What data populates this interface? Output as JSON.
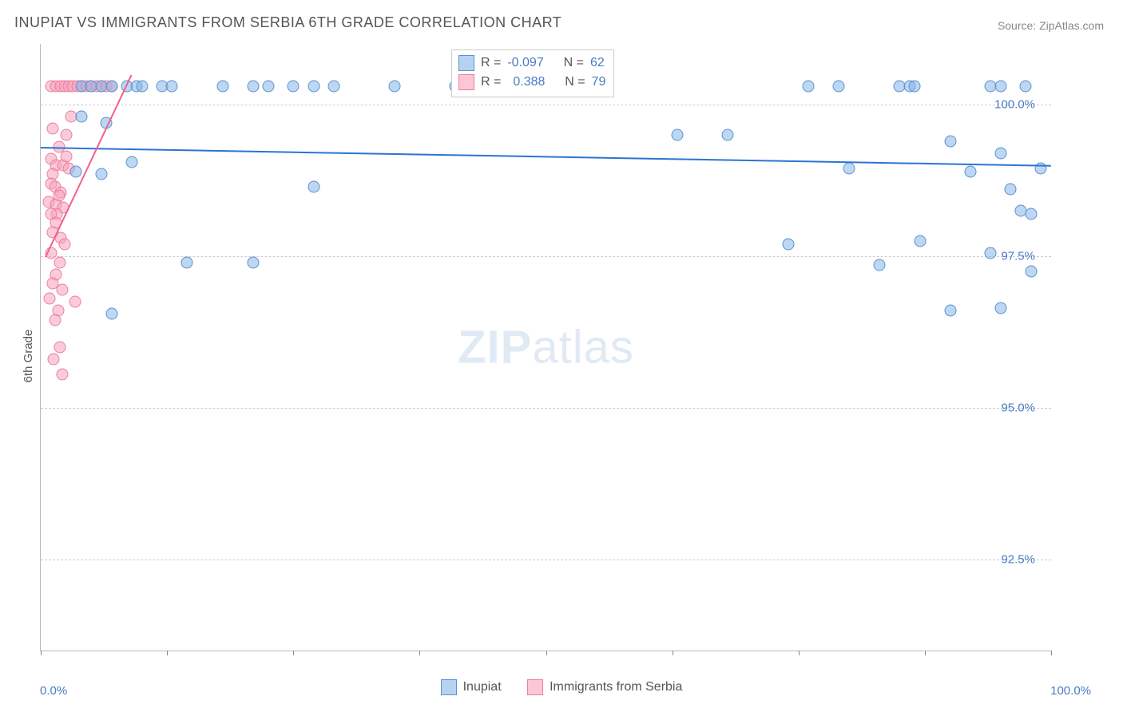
{
  "title": "INUPIAT VS IMMIGRANTS FROM SERBIA 6TH GRADE CORRELATION CHART",
  "source": "Source: ZipAtlas.com",
  "ylabel": "6th Grade",
  "watermark_zip": "ZIP",
  "watermark_atlas": "atlas",
  "chart": {
    "type": "scatter",
    "xlim": [
      0,
      100
    ],
    "ylim": [
      91,
      101
    ],
    "ytick_values": [
      92.5,
      95.0,
      97.5,
      100.0
    ],
    "ytick_labels": [
      "92.5%",
      "95.0%",
      "97.5%",
      "100.0%"
    ],
    "xtick_values": [
      0,
      12.5,
      25,
      37.5,
      50,
      62.5,
      75,
      87.5,
      100
    ],
    "xaxis_labels": {
      "left": "0.0%",
      "right": "100.0%"
    },
    "grid_color": "#cccccc",
    "background_color": "#ffffff",
    "series": {
      "blue": {
        "label": "Inupiat",
        "color_fill": "rgba(135,180,230,0.55)",
        "color_stroke": "#5a93d0",
        "trendline_color": "#2b74d4",
        "trendline": {
          "x1": 0,
          "y1": 99.3,
          "x2": 100,
          "y2": 99.0
        },
        "R": "-0.097",
        "N": "62",
        "points": [
          [
            4,
            100.3
          ],
          [
            5,
            100.3
          ],
          [
            6,
            100.3
          ],
          [
            7,
            100.3
          ],
          [
            8.5,
            100.3
          ],
          [
            9.5,
            100.3
          ],
          [
            10,
            100.3
          ],
          [
            12,
            100.3
          ],
          [
            13,
            100.3
          ],
          [
            18,
            100.3
          ],
          [
            21,
            100.3
          ],
          [
            22.5,
            100.3
          ],
          [
            25,
            100.3
          ],
          [
            27,
            100.3
          ],
          [
            29,
            100.3
          ],
          [
            35,
            100.3
          ],
          [
            41,
            100.3
          ],
          [
            76,
            100.3
          ],
          [
            79,
            100.3
          ],
          [
            85,
            100.3
          ],
          [
            86,
            100.3
          ],
          [
            86.5,
            100.3
          ],
          [
            94,
            100.3
          ],
          [
            95,
            100.3
          ],
          [
            97.5,
            100.3
          ],
          [
            4,
            99.8
          ],
          [
            6.5,
            99.7
          ],
          [
            63,
            99.5
          ],
          [
            68,
            99.5
          ],
          [
            90,
            99.4
          ],
          [
            95,
            99.2
          ],
          [
            9,
            99.05
          ],
          [
            3.5,
            98.9
          ],
          [
            6,
            98.85
          ],
          [
            80,
            98.95
          ],
          [
            92,
            98.9
          ],
          [
            99,
            98.95
          ],
          [
            27,
            98.65
          ],
          [
            96,
            98.6
          ],
          [
            97,
            98.25
          ],
          [
            98,
            98.2
          ],
          [
            74,
            97.7
          ],
          [
            87,
            97.75
          ],
          [
            94,
            97.55
          ],
          [
            14.5,
            97.4
          ],
          [
            21,
            97.4
          ],
          [
            83,
            97.35
          ],
          [
            98,
            97.25
          ],
          [
            7,
            96.55
          ],
          [
            90,
            96.6
          ],
          [
            95,
            96.65
          ]
        ]
      },
      "pink": {
        "label": "Immigrants from Serbia",
        "color_fill": "rgba(250,160,185,0.55)",
        "color_stroke": "#e87fa0",
        "trendline_color": "#f25f88",
        "trendline": {
          "x1": 0.5,
          "y1": 97.5,
          "x2": 9,
          "y2": 100.5
        },
        "R": "0.388",
        "N": "79",
        "points": [
          [
            1,
            100.3
          ],
          [
            1.5,
            100.3
          ],
          [
            2,
            100.3
          ],
          [
            2.4,
            100.3
          ],
          [
            2.8,
            100.3
          ],
          [
            3.2,
            100.3
          ],
          [
            3.6,
            100.3
          ],
          [
            4,
            100.3
          ],
          [
            4.5,
            100.3
          ],
          [
            5,
            100.3
          ],
          [
            5.5,
            100.3
          ],
          [
            6,
            100.3
          ],
          [
            6.5,
            100.3
          ],
          [
            7,
            100.3
          ],
          [
            3,
            99.8
          ],
          [
            1.2,
            99.6
          ],
          [
            2.5,
            99.5
          ],
          [
            1.8,
            99.3
          ],
          [
            1,
            99.1
          ],
          [
            1.5,
            99.0
          ],
          [
            2.2,
            99.0
          ],
          [
            2.8,
            98.95
          ],
          [
            2.5,
            99.15
          ],
          [
            1.2,
            98.85
          ],
          [
            1,
            98.7
          ],
          [
            1.4,
            98.65
          ],
          [
            2,
            98.55
          ],
          [
            0.8,
            98.4
          ],
          [
            1.5,
            98.35
          ],
          [
            2.2,
            98.3
          ],
          [
            1.8,
            98.5
          ],
          [
            1.6,
            98.2
          ],
          [
            1,
            98.2
          ],
          [
            1.5,
            98.05
          ],
          [
            1.2,
            97.9
          ],
          [
            2,
            97.8
          ],
          [
            2.4,
            97.7
          ],
          [
            1,
            97.55
          ],
          [
            1.9,
            97.4
          ],
          [
            1.5,
            97.2
          ],
          [
            1.2,
            97.05
          ],
          [
            2.1,
            96.95
          ],
          [
            0.9,
            96.8
          ],
          [
            3.4,
            96.75
          ],
          [
            1.7,
            96.6
          ],
          [
            1.4,
            96.45
          ],
          [
            1.9,
            96.0
          ],
          [
            1.3,
            95.8
          ],
          [
            2.1,
            95.55
          ]
        ]
      }
    }
  },
  "legend_inset": {
    "prefix_R": "R =",
    "prefix_N": "N ="
  },
  "bottom_legend": {
    "items": [
      "Inupiat",
      "Immigrants from Serbia"
    ]
  }
}
